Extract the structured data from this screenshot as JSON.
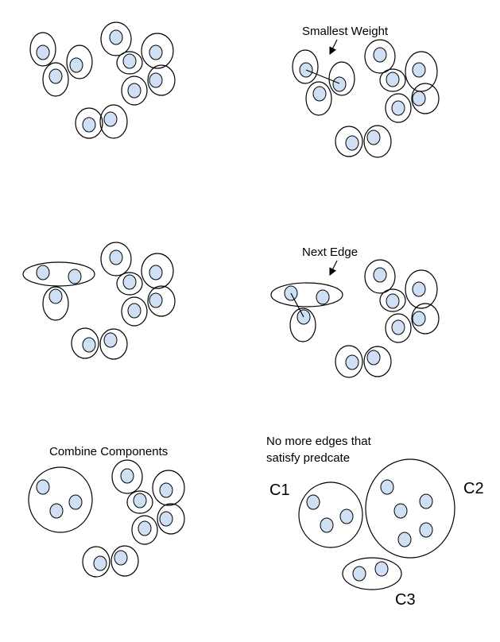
{
  "colors": {
    "node_fill": "#cfe0f5",
    "stroke": "#000000",
    "background": "#ffffff"
  },
  "panels": {
    "p2": {
      "label": "Smallest Weight"
    },
    "p4": {
      "label": "Next Edge"
    },
    "p5": {
      "label": "Combine Components"
    },
    "p6": {
      "label_line1": "No more edges that",
      "label_line2": "satisfy predcate",
      "c1": "C1",
      "c2": "C2",
      "c3": "C3"
    }
  }
}
